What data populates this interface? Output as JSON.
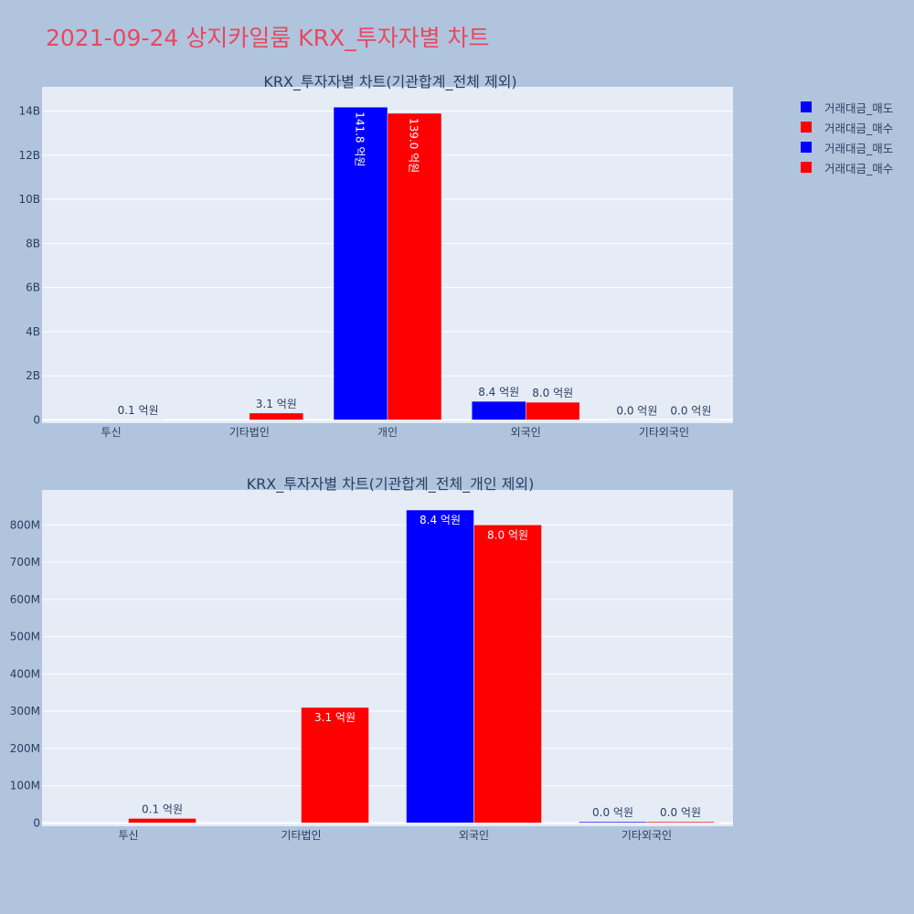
{
  "page": {
    "title": "2021-09-24 상지카일룸 KRX_투자자별 차트"
  },
  "legend": {
    "items": [
      {
        "label": "거래대금_매도",
        "color": "#0000ff"
      },
      {
        "label": "거래대금_매수",
        "color": "#ff0000"
      },
      {
        "label": "거래대금_매도",
        "color": "#0000ff"
      },
      {
        "label": "거래대금_매수",
        "color": "#ff0000"
      }
    ]
  },
  "colors": {
    "sell": "#0000ff",
    "buy": "#ff0000",
    "plot_bg": "#e5ecf6",
    "page_bg": "#b0c4de",
    "text": "#2a3f5f"
  },
  "chart_data": [
    {
      "type": "bar",
      "title": "KRX_투자자별 차트(기관합계_전체 제외)",
      "categories": [
        "투신",
        "기타법인",
        "개인",
        "외국인",
        "기타외국인"
      ],
      "series": [
        {
          "name": "거래대금_매도",
          "values": [
            0,
            0,
            14180000000,
            840000000,
            3000000
          ],
          "labels": [
            "",
            "",
            "141.8 억원",
            "8.4 억원",
            "0.0 억원"
          ]
        },
        {
          "name": "거래대금_매수",
          "values": [
            12000000,
            310000000,
            13900000000,
            800000000,
            3000000
          ],
          "labels": [
            "0.1 억원",
            "3.1 억원",
            "139.0 억원",
            "8.0 억원",
            "0.0 억원"
          ]
        }
      ],
      "yticks": [
        0,
        2000000000,
        4000000000,
        6000000000,
        8000000000,
        10000000000,
        12000000000,
        14000000000
      ],
      "yticklabels": [
        "0",
        "2B",
        "4B",
        "6B",
        "8B",
        "10B",
        "12B",
        "14B"
      ],
      "ylim": [
        -150000000,
        15100000000
      ],
      "xlabel": "",
      "ylabel": "",
      "grid": true
    },
    {
      "type": "bar",
      "title": "KRX_투자자별 차트(기관합계_전체_개인 제외)",
      "categories": [
        "투신",
        "기타법인",
        "외국인",
        "기타외국인"
      ],
      "series": [
        {
          "name": "거래대금_매도",
          "values": [
            0,
            0,
            840000000,
            3000000
          ],
          "labels": [
            "",
            "",
            "8.4 억원",
            "0.0 억원"
          ]
        },
        {
          "name": "거래대금_매수",
          "values": [
            12000000,
            310000000,
            800000000,
            3000000
          ],
          "labels": [
            "0.1 억원",
            "3.1 억원",
            "8.0 억원",
            "0.0 억원"
          ]
        }
      ],
      "yticks": [
        0,
        100000000,
        200000000,
        300000000,
        400000000,
        500000000,
        600000000,
        700000000,
        800000000
      ],
      "yticklabels": [
        "0",
        "100M",
        "200M",
        "300M",
        "400M",
        "500M",
        "600M",
        "700M",
        "800M"
      ],
      "ylim": [
        -9000000,
        894000000
      ],
      "xlabel": "",
      "ylabel": "",
      "grid": true
    }
  ]
}
